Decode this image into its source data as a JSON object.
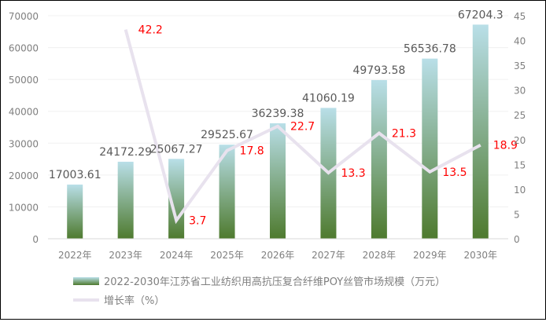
{
  "chart_data": {
    "type": "bar+line",
    "categories": [
      "2022年",
      "2023年",
      "2024年",
      "2025年",
      "2026年",
      "2027年",
      "2028年",
      "2029年",
      "2030年"
    ],
    "series": [
      {
        "name": "2022-2030年江苏省工业纺织用高抗压复合纤维POY丝管市场规模（万元）",
        "type": "bar",
        "axis": "left",
        "values": [
          17003.61,
          24172.29,
          25067.27,
          29525.67,
          36239.38,
          41060.19,
          49793.58,
          56536.78,
          67204.3
        ],
        "labels": [
          "17003.61",
          "24172.29",
          "25067.27",
          "29525.67",
          "36239.38",
          "41060.19",
          "49793.58",
          "56536.78",
          "67204.3"
        ]
      },
      {
        "name": "增长率（%）",
        "type": "line",
        "axis": "right",
        "values": [
          null,
          42.2,
          3.7,
          17.8,
          22.7,
          13.3,
          21.3,
          13.5,
          18.9
        ],
        "labels": [
          "",
          "42.2",
          "3.7",
          "17.8",
          "22.7",
          "13.3",
          "21.3",
          "13.5",
          "18.9"
        ]
      }
    ],
    "y_left": {
      "min": 0,
      "max": 70000,
      "ticks": [
        "0",
        "10000",
        "20000",
        "30000",
        "40000",
        "50000",
        "60000",
        "70000"
      ]
    },
    "y_right": {
      "min": 0,
      "max": 45,
      "ticks": [
        "0",
        "5",
        "10",
        "15",
        "20",
        "25",
        "30",
        "35",
        "40",
        "45"
      ]
    },
    "grid": true,
    "legend_position": "bottom",
    "colors": {
      "bar_top": "#b9dfe8",
      "bar_bottom": "#4e7a2e",
      "line": "#e8e2ee",
      "line_label": "#ff0000",
      "bar_label": "#595959",
      "axis_text": "#7f7f7f"
    }
  }
}
